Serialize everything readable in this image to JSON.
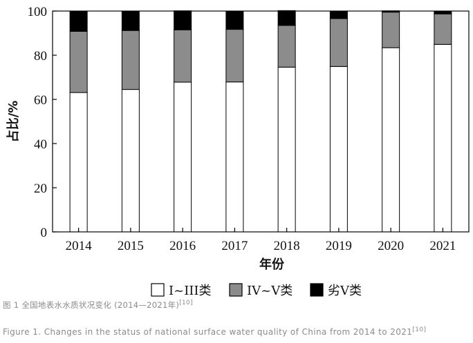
{
  "chart_data": {
    "type": "bar",
    "stacked": true,
    "categories": [
      "2014",
      "2015",
      "2016",
      "2017",
      "2018",
      "2019",
      "2020",
      "2021"
    ],
    "series": [
      {
        "name": "I~III类",
        "color": "#ffffff",
        "values": [
          63.1,
          64.5,
          67.8,
          67.9,
          74.6,
          74.9,
          83.4,
          84.9
        ]
      },
      {
        "name": "IV~V类",
        "color": "#8c8c8c",
        "values": [
          27.7,
          26.7,
          23.7,
          23.8,
          18.9,
          21.7,
          16.1,
          13.8
        ]
      },
      {
        "name": "劣V类",
        "color": "#000000",
        "values": [
          9.2,
          8.8,
          8.6,
          8.3,
          6.7,
          3.4,
          0.6,
          1.2
        ]
      }
    ],
    "ylim": [
      0,
      100
    ],
    "yticks": [
      0,
      20,
      40,
      60,
      80,
      100
    ],
    "xlabel": "年份",
    "ylabel": "占比/%",
    "legend_position": "bottom",
    "grid": false
  },
  "captions": {
    "cn_text": "图  1  全国地表水水质状况变化 (2014—2021年)",
    "cn_ref": "[10]",
    "en_text": "Figure  1.  Changes in the status of national surface water quality of China from 2014 to 2021",
    "en_ref": "[10]"
  }
}
